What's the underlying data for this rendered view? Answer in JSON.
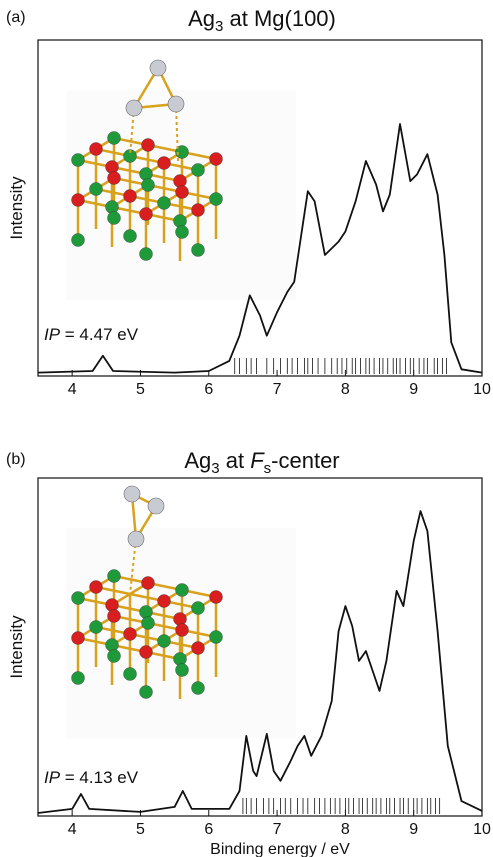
{
  "chart_data": [
    {
      "type": "line",
      "panel_label": "(a)",
      "title": [
        "Ag",
        "3",
        " at Mg(100)"
      ],
      "ylabel": "Intensity",
      "annotation": [
        "IP",
        " = 4.47 eV"
      ],
      "color": "#111111",
      "xlim": [
        3.5,
        10
      ],
      "xticks": [
        4,
        5,
        6,
        7,
        8,
        9,
        10
      ],
      "ylim": [
        0,
        100
      ],
      "x": [
        3.5,
        4.3,
        4.45,
        4.6,
        5.5,
        6.0,
        6.3,
        6.45,
        6.6,
        6.75,
        6.85,
        7.0,
        7.15,
        7.25,
        7.45,
        7.55,
        7.7,
        7.9,
        8.0,
        8.15,
        8.3,
        8.45,
        8.55,
        8.65,
        8.8,
        8.95,
        9.05,
        9.2,
        9.35,
        9.45,
        9.55,
        9.7,
        10
      ],
      "values": [
        1,
        1.5,
        6,
        1.5,
        1,
        1.5,
        4.5,
        12,
        24,
        18,
        12,
        19,
        25,
        28,
        55,
        52,
        36,
        40,
        43,
        52,
        64,
        57,
        49,
        54,
        75,
        58,
        60,
        66,
        54,
        36,
        10,
        2,
        1
      ],
      "stick_x": [
        6.38,
        6.45,
        6.55,
        6.62,
        6.7,
        6.85,
        6.95,
        7.05,
        7.15,
        7.22,
        7.3,
        7.4,
        7.45,
        7.52,
        7.6,
        7.7,
        7.8,
        7.88,
        7.95,
        8.02,
        8.1,
        8.15,
        8.22,
        8.3,
        8.35,
        8.42,
        8.5,
        8.55,
        8.62,
        8.7,
        8.75,
        8.8,
        8.88,
        8.95,
        9.0,
        9.08,
        9.15,
        9.2,
        9.3,
        9.35,
        9.42,
        9.48
      ]
    },
    {
      "type": "line",
      "panel_label": "(b)",
      "title": [
        "Ag",
        "3",
        " at ",
        "F",
        "s",
        "-center"
      ],
      "ylabel": "Intensity",
      "xlabel": "Binding energy / eV",
      "annotation": [
        "IP",
        " = 4.13 eV"
      ],
      "color": "#111111",
      "xlim": [
        3.5,
        10
      ],
      "xticks": [
        4,
        5,
        6,
        7,
        8,
        9,
        10
      ],
      "ylim": [
        0,
        100
      ],
      "x": [
        3.5,
        4.0,
        4.13,
        4.25,
        5.0,
        5.5,
        5.62,
        5.75,
        6.3,
        6.45,
        6.55,
        6.65,
        6.7,
        6.85,
        6.95,
        7.05,
        7.2,
        7.3,
        7.4,
        7.5,
        7.65,
        7.8,
        7.9,
        8.0,
        8.1,
        8.2,
        8.3,
        8.4,
        8.5,
        8.6,
        8.75,
        8.85,
        9.0,
        9.1,
        9.2,
        9.35,
        9.5,
        9.7,
        10
      ],
      "values": [
        0.9,
        2.1,
        6.5,
        2.1,
        1.2,
        2.7,
        7.4,
        2.1,
        2.1,
        7.4,
        23.7,
        13.3,
        11.8,
        24.3,
        13.3,
        10.4,
        16.3,
        20.7,
        23.7,
        17.8,
        23.7,
        34,
        54.7,
        62.1,
        56.2,
        45.9,
        48.8,
        42.9,
        37,
        45.9,
        66.6,
        62.1,
        81.4,
        90.2,
        84.3,
        54.7,
        20.7,
        4.4,
        1.5
      ],
      "stick_x": [
        6.5,
        6.55,
        6.62,
        6.7,
        6.8,
        6.88,
        6.95,
        7.05,
        7.12,
        7.2,
        7.3,
        7.38,
        7.45,
        7.55,
        7.62,
        7.7,
        7.78,
        7.85,
        7.92,
        8.0,
        8.05,
        8.12,
        8.2,
        8.25,
        8.32,
        8.4,
        8.45,
        8.52,
        8.6,
        8.65,
        8.72,
        8.8,
        8.85,
        8.92,
        9.0,
        9.05,
        9.12,
        9.2,
        9.25,
        9.32,
        9.38
      ]
    }
  ]
}
